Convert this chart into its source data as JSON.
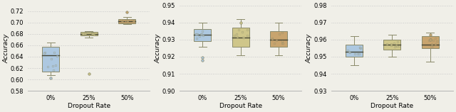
{
  "plots": [
    {
      "xlabel": "Dropout Rate",
      "ylabel": "Accuracy",
      "ylim": [
        0.58,
        0.73
      ],
      "yticks": [
        0.58,
        0.6,
        0.62,
        0.64,
        0.66,
        0.68,
        0.7,
        0.72
      ],
      "xtick_labels": [
        "0%",
        "25%",
        "50%"
      ],
      "boxes": [
        {
          "x": 1,
          "q1": 0.614,
          "median": 0.642,
          "q3": 0.658,
          "whislo": 0.608,
          "whishi": 0.665,
          "fliers": [
            0.603
          ],
          "color": "#adc8e0",
          "edgecolor": "#8a8a6a"
        },
        {
          "x": 2,
          "q1": 0.677,
          "median": 0.68,
          "q3": 0.683,
          "whislo": 0.674,
          "whishi": 0.685,
          "fliers": [
            0.61
          ],
          "color": "#cfc68a",
          "edgecolor": "#8a8a6a"
        },
        {
          "x": 3,
          "q1": 0.699,
          "median": 0.702,
          "q3": 0.706,
          "whislo": 0.697,
          "whishi": 0.71,
          "fliers": [
            0.718
          ],
          "color": "#c8a46e",
          "edgecolor": "#8a8a6a"
        }
      ]
    },
    {
      "xlabel": "Dropout Rate",
      "ylabel": "Accuracy",
      "ylim": [
        0.9,
        0.95
      ],
      "yticks": [
        0.9,
        0.91,
        0.92,
        0.93,
        0.94,
        0.95
      ],
      "xtick_labels": [
        "0%",
        "25%",
        "50%"
      ],
      "boxes": [
        {
          "x": 1,
          "q1": 0.929,
          "median": 0.933,
          "q3": 0.936,
          "whislo": 0.926,
          "whishi": 0.94,
          "fliers": [
            0.9195,
            0.918
          ],
          "color": "#adc8e0",
          "edgecolor": "#8a8a6a"
        },
        {
          "x": 2,
          "q1": 0.926,
          "median": 0.931,
          "q3": 0.937,
          "whislo": 0.921,
          "whishi": 0.942,
          "fliers": [
            0.94
          ],
          "color": "#cfc68a",
          "edgecolor": "#8a8a6a"
        },
        {
          "x": 3,
          "q1": 0.926,
          "median": 0.93,
          "q3": 0.935,
          "whislo": 0.921,
          "whishi": 0.94,
          "fliers": [],
          "color": "#c8a46e",
          "edgecolor": "#8a8a6a"
        }
      ]
    },
    {
      "xlabel": "Dropout Rate",
      "ylabel": "Accuracy",
      "ylim": [
        0.93,
        0.98
      ],
      "yticks": [
        0.93,
        0.94,
        0.95,
        0.96,
        0.97,
        0.98
      ],
      "xtick_labels": [
        "0%",
        "25%",
        "50%"
      ],
      "boxes": [
        {
          "x": 1,
          "q1": 0.95,
          "median": 0.953,
          "q3": 0.957,
          "whislo": 0.945,
          "whishi": 0.962,
          "fliers": [],
          "color": "#adc8e0",
          "edgecolor": "#8a8a6a"
        },
        {
          "x": 2,
          "q1": 0.954,
          "median": 0.957,
          "q3": 0.96,
          "whislo": 0.95,
          "whishi": 0.963,
          "fliers": [],
          "color": "#cfc68a",
          "edgecolor": "#8a8a6a"
        },
        {
          "x": 3,
          "q1": 0.955,
          "median": 0.957,
          "q3": 0.962,
          "whislo": 0.947,
          "whishi": 0.964,
          "fliers": [
            0.963,
            0.96
          ],
          "color": "#c8a46e",
          "edgecolor": "#8a8a6a"
        }
      ]
    }
  ],
  "bg_color": "#f0efe8",
  "grid_color": "#c8c8c8",
  "box_width": 0.45
}
